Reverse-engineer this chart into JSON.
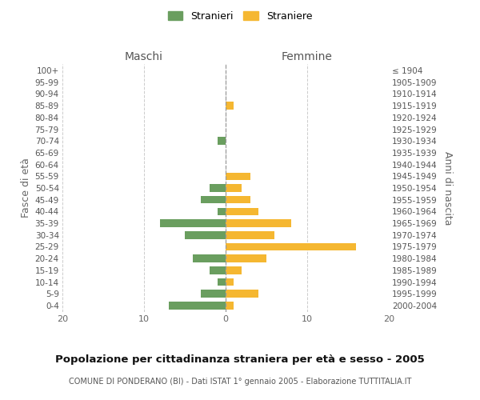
{
  "age_groups_bottom_to_top": [
    "0-4",
    "5-9",
    "10-14",
    "15-19",
    "20-24",
    "25-29",
    "30-34",
    "35-39",
    "40-44",
    "45-49",
    "50-54",
    "55-59",
    "60-64",
    "65-69",
    "70-74",
    "75-79",
    "80-84",
    "85-89",
    "90-94",
    "95-99",
    "100+"
  ],
  "birth_years_bottom_to_top": [
    "2000-2004",
    "1995-1999",
    "1990-1994",
    "1985-1989",
    "1980-1984",
    "1975-1979",
    "1970-1974",
    "1965-1969",
    "1960-1964",
    "1955-1959",
    "1950-1954",
    "1945-1949",
    "1940-1944",
    "1935-1939",
    "1930-1934",
    "1925-1929",
    "1920-1924",
    "1915-1919",
    "1910-1914",
    "1905-1909",
    "≤ 1904"
  ],
  "males_bottom_to_top": [
    7,
    3,
    1,
    2,
    4,
    0,
    5,
    8,
    1,
    3,
    2,
    0,
    0,
    0,
    1,
    0,
    0,
    0,
    0,
    0,
    0
  ],
  "females_bottom_to_top": [
    1,
    4,
    1,
    2,
    5,
    16,
    6,
    8,
    4,
    3,
    2,
    3,
    0,
    0,
    0,
    0,
    0,
    1,
    0,
    0,
    0
  ],
  "male_color": "#6a9e5f",
  "female_color": "#f5b731",
  "title": "Popolazione per cittadinanza straniera per età e sesso - 2005",
  "subtitle": "COMUNE DI PONDERANO (BI) - Dati ISTAT 1° gennaio 2005 - Elaborazione TUTTITALIA.IT",
  "label_maschi": "Maschi",
  "label_femmine": "Femmine",
  "ylabel_left": "Fasce di età",
  "ylabel_right": "Anni di nascita",
  "legend_stranieri": "Stranieri",
  "legend_straniere": "Straniere",
  "xlim": 20,
  "grid_color": "#cccccc"
}
